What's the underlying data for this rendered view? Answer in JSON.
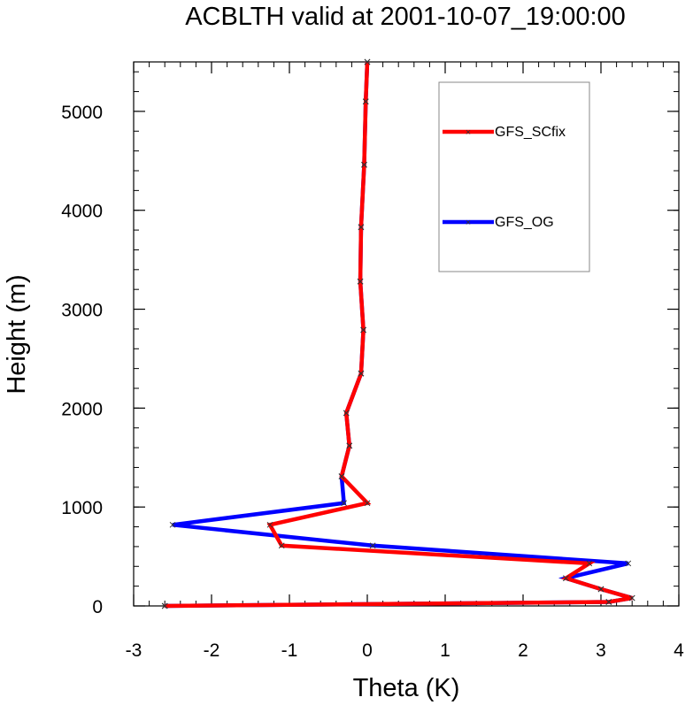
{
  "chart_data": {
    "type": "line",
    "title": "ACBLTH valid at 2001-10-07_19:00:00",
    "xlabel": "Theta (K)",
    "ylabel": "Height (m)",
    "xlim": [
      -3,
      4
    ],
    "ylim": [
      0,
      5500
    ],
    "xticks": [
      -3,
      -2,
      -1,
      0,
      1,
      2,
      3,
      4
    ],
    "yticks": [
      0,
      1000,
      2000,
      3000,
      4000,
      5000
    ],
    "legend": "top-right",
    "series": [
      {
        "name": "GFS_OG",
        "color": "#0000ff",
        "x": [
          -2.6,
          3.1,
          3.4,
          3.0,
          2.55,
          3.35,
          0.07,
          -2.5,
          -0.3,
          -0.33,
          -0.23,
          -0.27,
          -0.08,
          -0.05,
          -0.09,
          -0.08,
          -0.04,
          -0.02,
          0.0
        ],
        "y": [
          0,
          40,
          80,
          170,
          280,
          430,
          610,
          820,
          1040,
          1310,
          1620,
          1950,
          2350,
          2790,
          3280,
          3830,
          4460,
          5100,
          5500
        ]
      },
      {
        "name": "GFS_SCfix",
        "color": "#ff0000",
        "x": [
          -2.6,
          3.1,
          3.4,
          3.0,
          2.55,
          2.85,
          -1.1,
          -1.25,
          0.0,
          -0.33,
          -0.23,
          -0.27,
          -0.08,
          -0.05,
          -0.09,
          -0.08,
          -0.04,
          -0.02,
          0.0
        ],
        "y": [
          0,
          40,
          80,
          170,
          280,
          430,
          610,
          820,
          1040,
          1310,
          1620,
          1950,
          2350,
          2790,
          3280,
          3830,
          4460,
          5100,
          5500
        ]
      }
    ],
    "legend_entries": [
      "GFS_SCfix",
      "GFS_OG"
    ]
  }
}
